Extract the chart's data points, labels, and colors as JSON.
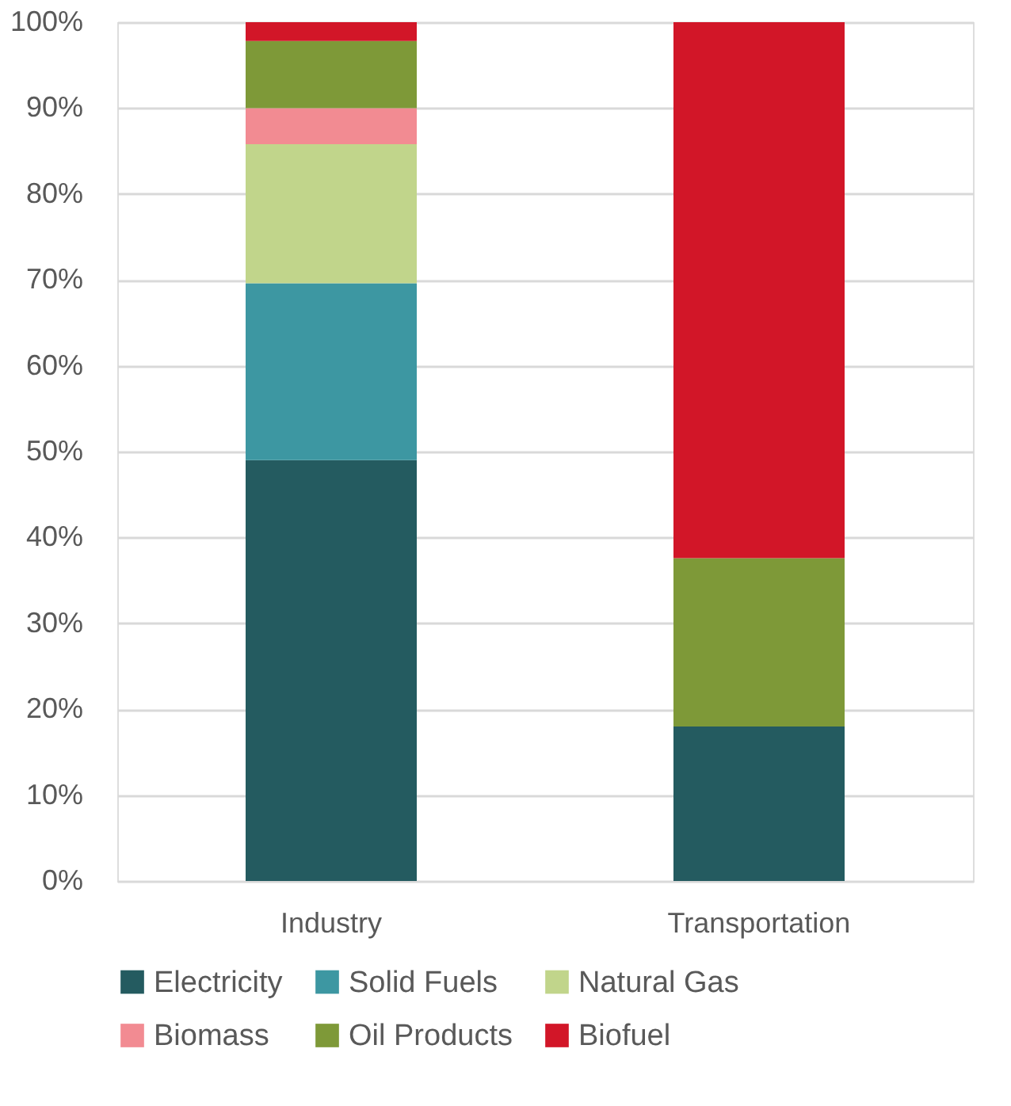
{
  "chart_data": {
    "type": "bar",
    "stacked": true,
    "categories": [
      "Industry",
      "Transportation"
    ],
    "series": [
      {
        "name": "Electricity",
        "color": "#245b60",
        "values": [
          49,
          18
        ]
      },
      {
        "name": "Solid Fuels",
        "color": "#3d97a2",
        "values": [
          20.6,
          0
        ]
      },
      {
        "name": "Natural Gas",
        "color": "#c1d58b",
        "values": [
          16.2,
          0
        ]
      },
      {
        "name": "Biomass",
        "color": "#f28b92",
        "values": [
          4.2,
          0
        ]
      },
      {
        "name": "Oil Products",
        "color": "#7e9938",
        "values": [
          7.8,
          19.6
        ]
      },
      {
        "name": "Biofuel",
        "color": "#d21628",
        "values": [
          2.2,
          62.4
        ]
      }
    ],
    "ylim": [
      0,
      100
    ],
    "yticks": [
      {
        "value": 0,
        "label": "0%"
      },
      {
        "value": 10,
        "label": "10%"
      },
      {
        "value": 20,
        "label": "20%"
      },
      {
        "value": 30,
        "label": "30%"
      },
      {
        "value": 40,
        "label": "40%"
      },
      {
        "value": 50,
        "label": "50%"
      },
      {
        "value": 60,
        "label": "60%"
      },
      {
        "value": 70,
        "label": "70%"
      },
      {
        "value": 80,
        "label": "80%"
      },
      {
        "value": 90,
        "label": "90%"
      },
      {
        "value": 100,
        "label": "100%"
      }
    ],
    "grid": "y",
    "legend": "bottom"
  }
}
